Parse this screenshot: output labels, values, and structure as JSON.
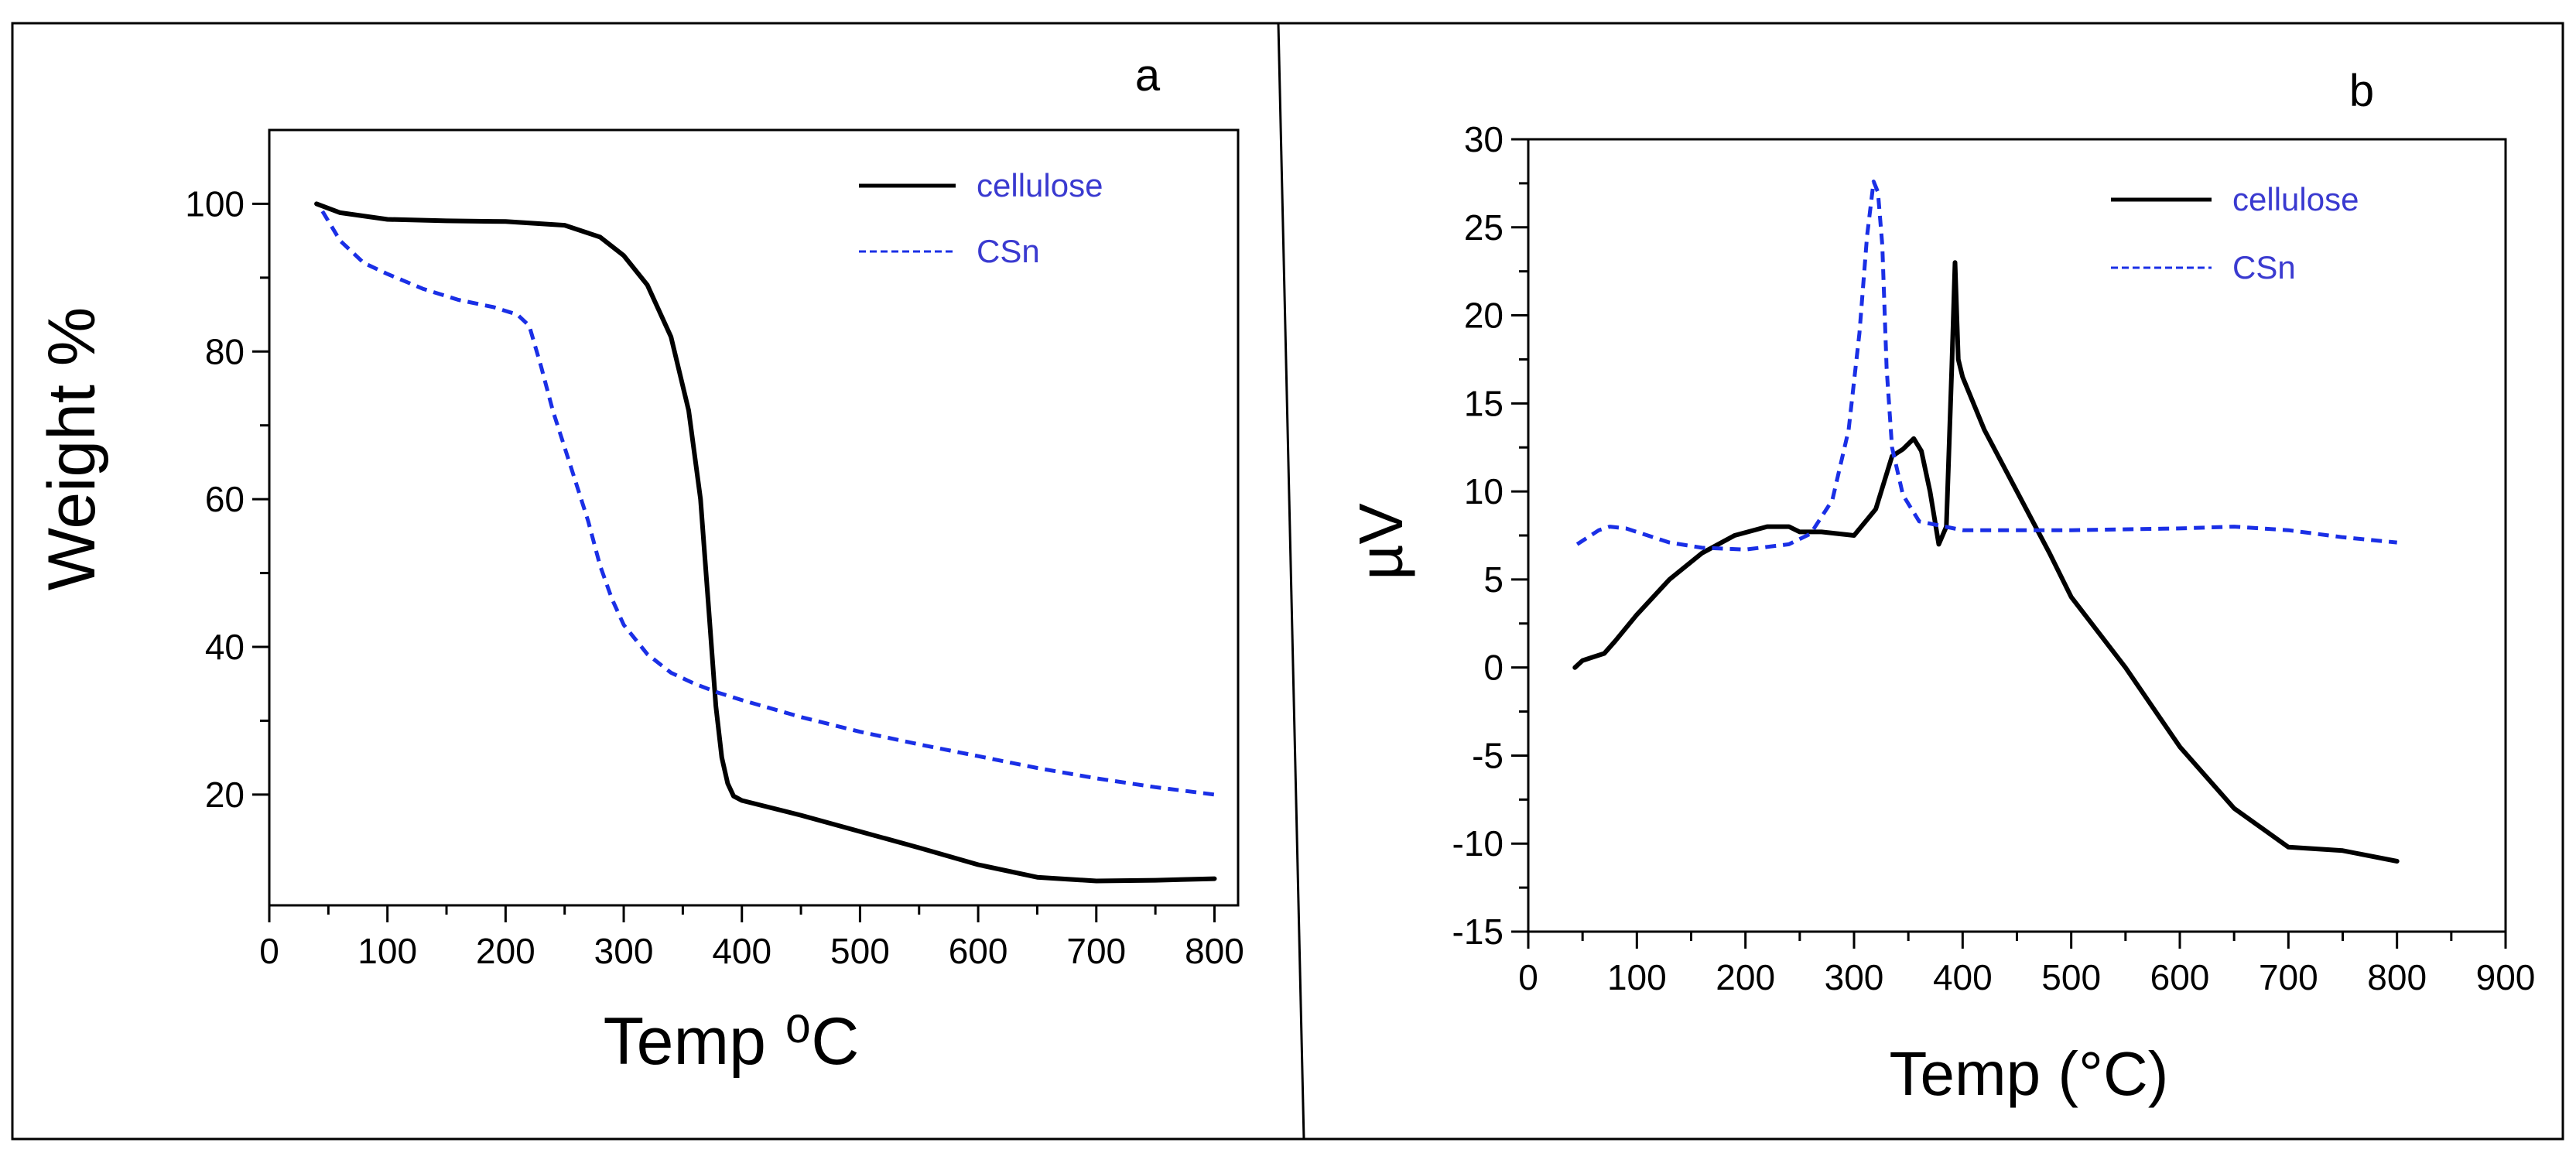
{
  "chart_data": [
    {
      "type": "line",
      "panel_label": "a",
      "xlabel": "Temp ⁰C",
      "ylabel": "Weight %",
      "xlim": [
        0,
        820
      ],
      "ylim": [
        5,
        110
      ],
      "xticks": [
        0,
        100,
        200,
        300,
        400,
        500,
        600,
        700,
        800
      ],
      "yticks": [
        20,
        40,
        60,
        80,
        100
      ],
      "grid": false,
      "legend_position": "top-right",
      "series": [
        {
          "name": "cellulose",
          "color": "#000000",
          "dash": "solid",
          "x": [
            40,
            60,
            100,
            150,
            200,
            250,
            280,
            300,
            320,
            340,
            355,
            365,
            372,
            378,
            383,
            388,
            393,
            400,
            450,
            500,
            550,
            600,
            650,
            700,
            750,
            800
          ],
          "y": [
            100,
            98.8,
            97.9,
            97.7,
            97.6,
            97.1,
            95.5,
            93,
            89,
            82,
            72,
            60,
            45,
            32,
            25,
            21.5,
            19.8,
            19.2,
            17.2,
            15,
            12.8,
            10.5,
            8.8,
            8.3,
            8.4,
            8.6
          ]
        },
        {
          "name": "CSn",
          "color": "#1a2fe6",
          "dash": "dashed",
          "x": [
            45,
            60,
            80,
            100,
            130,
            160,
            190,
            210,
            220,
            230,
            240,
            250,
            260,
            270,
            280,
            290,
            300,
            320,
            340,
            360,
            380,
            400,
            450,
            500,
            550,
            600,
            650,
            700,
            750,
            800
          ],
          "y": [
            99,
            95,
            92,
            90.5,
            88.5,
            87,
            86,
            85,
            83.5,
            78,
            72,
            67,
            62,
            57,
            51,
            46.5,
            43,
            39,
            36.5,
            35,
            33.8,
            32.8,
            30.5,
            28.5,
            26.8,
            25.2,
            23.6,
            22.2,
            21,
            20
          ]
        }
      ]
    },
    {
      "type": "line",
      "panel_label": "b",
      "xlabel": "Temp (°C)",
      "ylabel": "µV",
      "xlim": [
        0,
        900
      ],
      "ylim": [
        -15,
        30
      ],
      "xticks": [
        0,
        100,
        200,
        300,
        400,
        500,
        600,
        700,
        800,
        900
      ],
      "yticks": [
        -15,
        -10,
        -5,
        0,
        5,
        10,
        15,
        20,
        25,
        30
      ],
      "grid": false,
      "legend_position": "top-right",
      "series": [
        {
          "name": "cellulose",
          "color": "#000000",
          "dash": "solid",
          "x": [
            43,
            50,
            60,
            70,
            80,
            100,
            130,
            160,
            190,
            220,
            240,
            250,
            270,
            300,
            320,
            335,
            345,
            355,
            362,
            370,
            378,
            385,
            390,
            393,
            396,
            400,
            420,
            450,
            480,
            500,
            550,
            600,
            650,
            700,
            750,
            800
          ],
          "y": [
            0,
            0.4,
            0.6,
            0.8,
            1.5,
            3,
            5,
            6.5,
            7.5,
            8,
            8,
            7.7,
            7.7,
            7.5,
            9,
            12,
            12.4,
            13,
            12.3,
            10,
            7,
            8,
            17,
            23,
            17.5,
            16.5,
            13.5,
            10,
            6.5,
            4,
            0,
            -4.5,
            -8,
            -10.2,
            -10.4,
            -11
          ]
        },
        {
          "name": "CSn",
          "color": "#1a2fe6",
          "dash": "dashed",
          "x": [
            45,
            55,
            65,
            75,
            90,
            110,
            130,
            160,
            200,
            240,
            260,
            280,
            295,
            305,
            312,
            318,
            322,
            326,
            330,
            335,
            345,
            360,
            400,
            500,
            600,
            650,
            700,
            750,
            800
          ],
          "y": [
            7,
            7.4,
            7.8,
            8,
            7.9,
            7.5,
            7.1,
            6.8,
            6.7,
            7,
            7.6,
            9.5,
            13.5,
            19,
            24.5,
            27.6,
            27,
            24,
            17,
            12.5,
            9.8,
            8.3,
            7.8,
            7.8,
            7.9,
            8,
            7.8,
            7.4,
            7.1
          ]
        }
      ]
    }
  ]
}
